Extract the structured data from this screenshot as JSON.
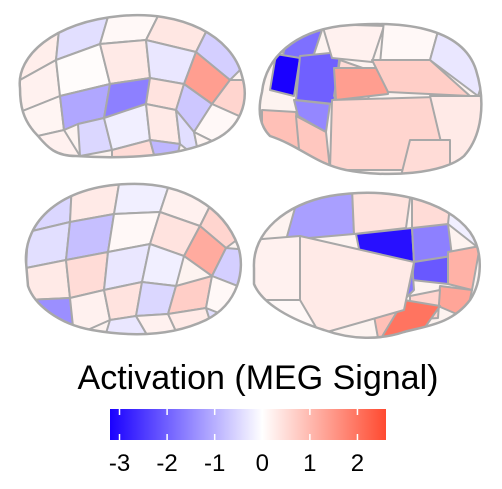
{
  "legend": {
    "title": "Activation (MEG Signal)",
    "min": -3.2,
    "max": 2.6,
    "ticks": [
      {
        "value": -3,
        "label": "-3"
      },
      {
        "value": -2,
        "label": "-2"
      },
      {
        "value": -1,
        "label": "-1"
      },
      {
        "value": 0,
        "label": "0"
      },
      {
        "value": 1,
        "label": "1"
      },
      {
        "value": 2,
        "label": "2"
      }
    ],
    "colors": {
      "low": "#1a00ff",
      "mid": "#ffffff",
      "high": "#ff4a30"
    }
  },
  "views": [
    {
      "name": "left-lateral",
      "regions": [
        0.25,
        -0.4,
        0.1,
        0.35,
        -0.6,
        0.2,
        0.05,
        0.3,
        -0.3,
        1.4,
        0.6,
        0.15,
        -1.1,
        -0.5,
        -1.6,
        0.4,
        -0.7,
        0.1,
        -0.2,
        0.3,
        -0.4,
        0.2,
        0.5,
        -0.9,
        0.15
      ]
    },
    {
      "name": "left-medial",
      "regions": [
        -1.8,
        -3.2,
        -2.0,
        -1.5,
        0.5,
        1.4,
        0.6,
        0.9,
        0.8,
        0.4,
        0.2,
        0.1,
        -0.3,
        0.7,
        0.3,
        0.5
      ]
    },
    {
      "name": "right-lateral",
      "regions": [
        -0.5,
        0.3,
        -0.2,
        0.2,
        0.6,
        -0.4,
        -0.8,
        0.1,
        0.4,
        1.2,
        -0.6,
        0.3,
        0.5,
        -0.3,
        -0.2,
        -1.4,
        0.2,
        0.4,
        -0.5,
        0.7,
        0.1,
        -0.3,
        0.2,
        0.3,
        -0.4
      ]
    },
    {
      "name": "right-medial",
      "regions": [
        -1.2,
        0.4,
        -3.0,
        -1.6,
        -2.1,
        1.1,
        1.3,
        0.6,
        0.9,
        2.0,
        0.2,
        -0.2,
        0.5,
        0.1,
        -1.7,
        0.3
      ]
    }
  ]
}
